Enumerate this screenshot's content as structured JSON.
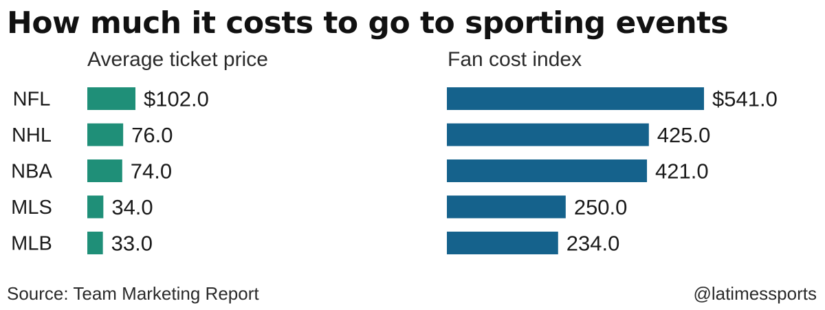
{
  "title": "How much it costs to go to sporting events",
  "source": "Source: Team Marketing Report",
  "credit": "@latimessports",
  "colors": {
    "ticket_bar": "#1f8f78",
    "fan_bar": "#15628c",
    "text": "#1a1a1a"
  },
  "chart_data": [
    {
      "type": "bar",
      "orientation": "horizontal",
      "title": "Average ticket price",
      "categories": [
        "NFL",
        "NHL",
        "NBA",
        "MLS",
        "MLB"
      ],
      "values": [
        102.0,
        76.0,
        74.0,
        34.0,
        33.0
      ],
      "value_labels": [
        "$102.0",
        "76.0",
        "74.0",
        "34.0",
        "33.0"
      ]
    },
    {
      "type": "bar",
      "orientation": "horizontal",
      "title": "Fan cost index",
      "categories": [
        "NFL",
        "NHL",
        "NBA",
        "MLS",
        "MLB"
      ],
      "values": [
        541.0,
        425.0,
        421.0,
        250.0,
        234.0
      ],
      "value_labels": [
        "$541.0",
        "425.0",
        "421.0",
        "250.0",
        "234.0"
      ]
    }
  ]
}
